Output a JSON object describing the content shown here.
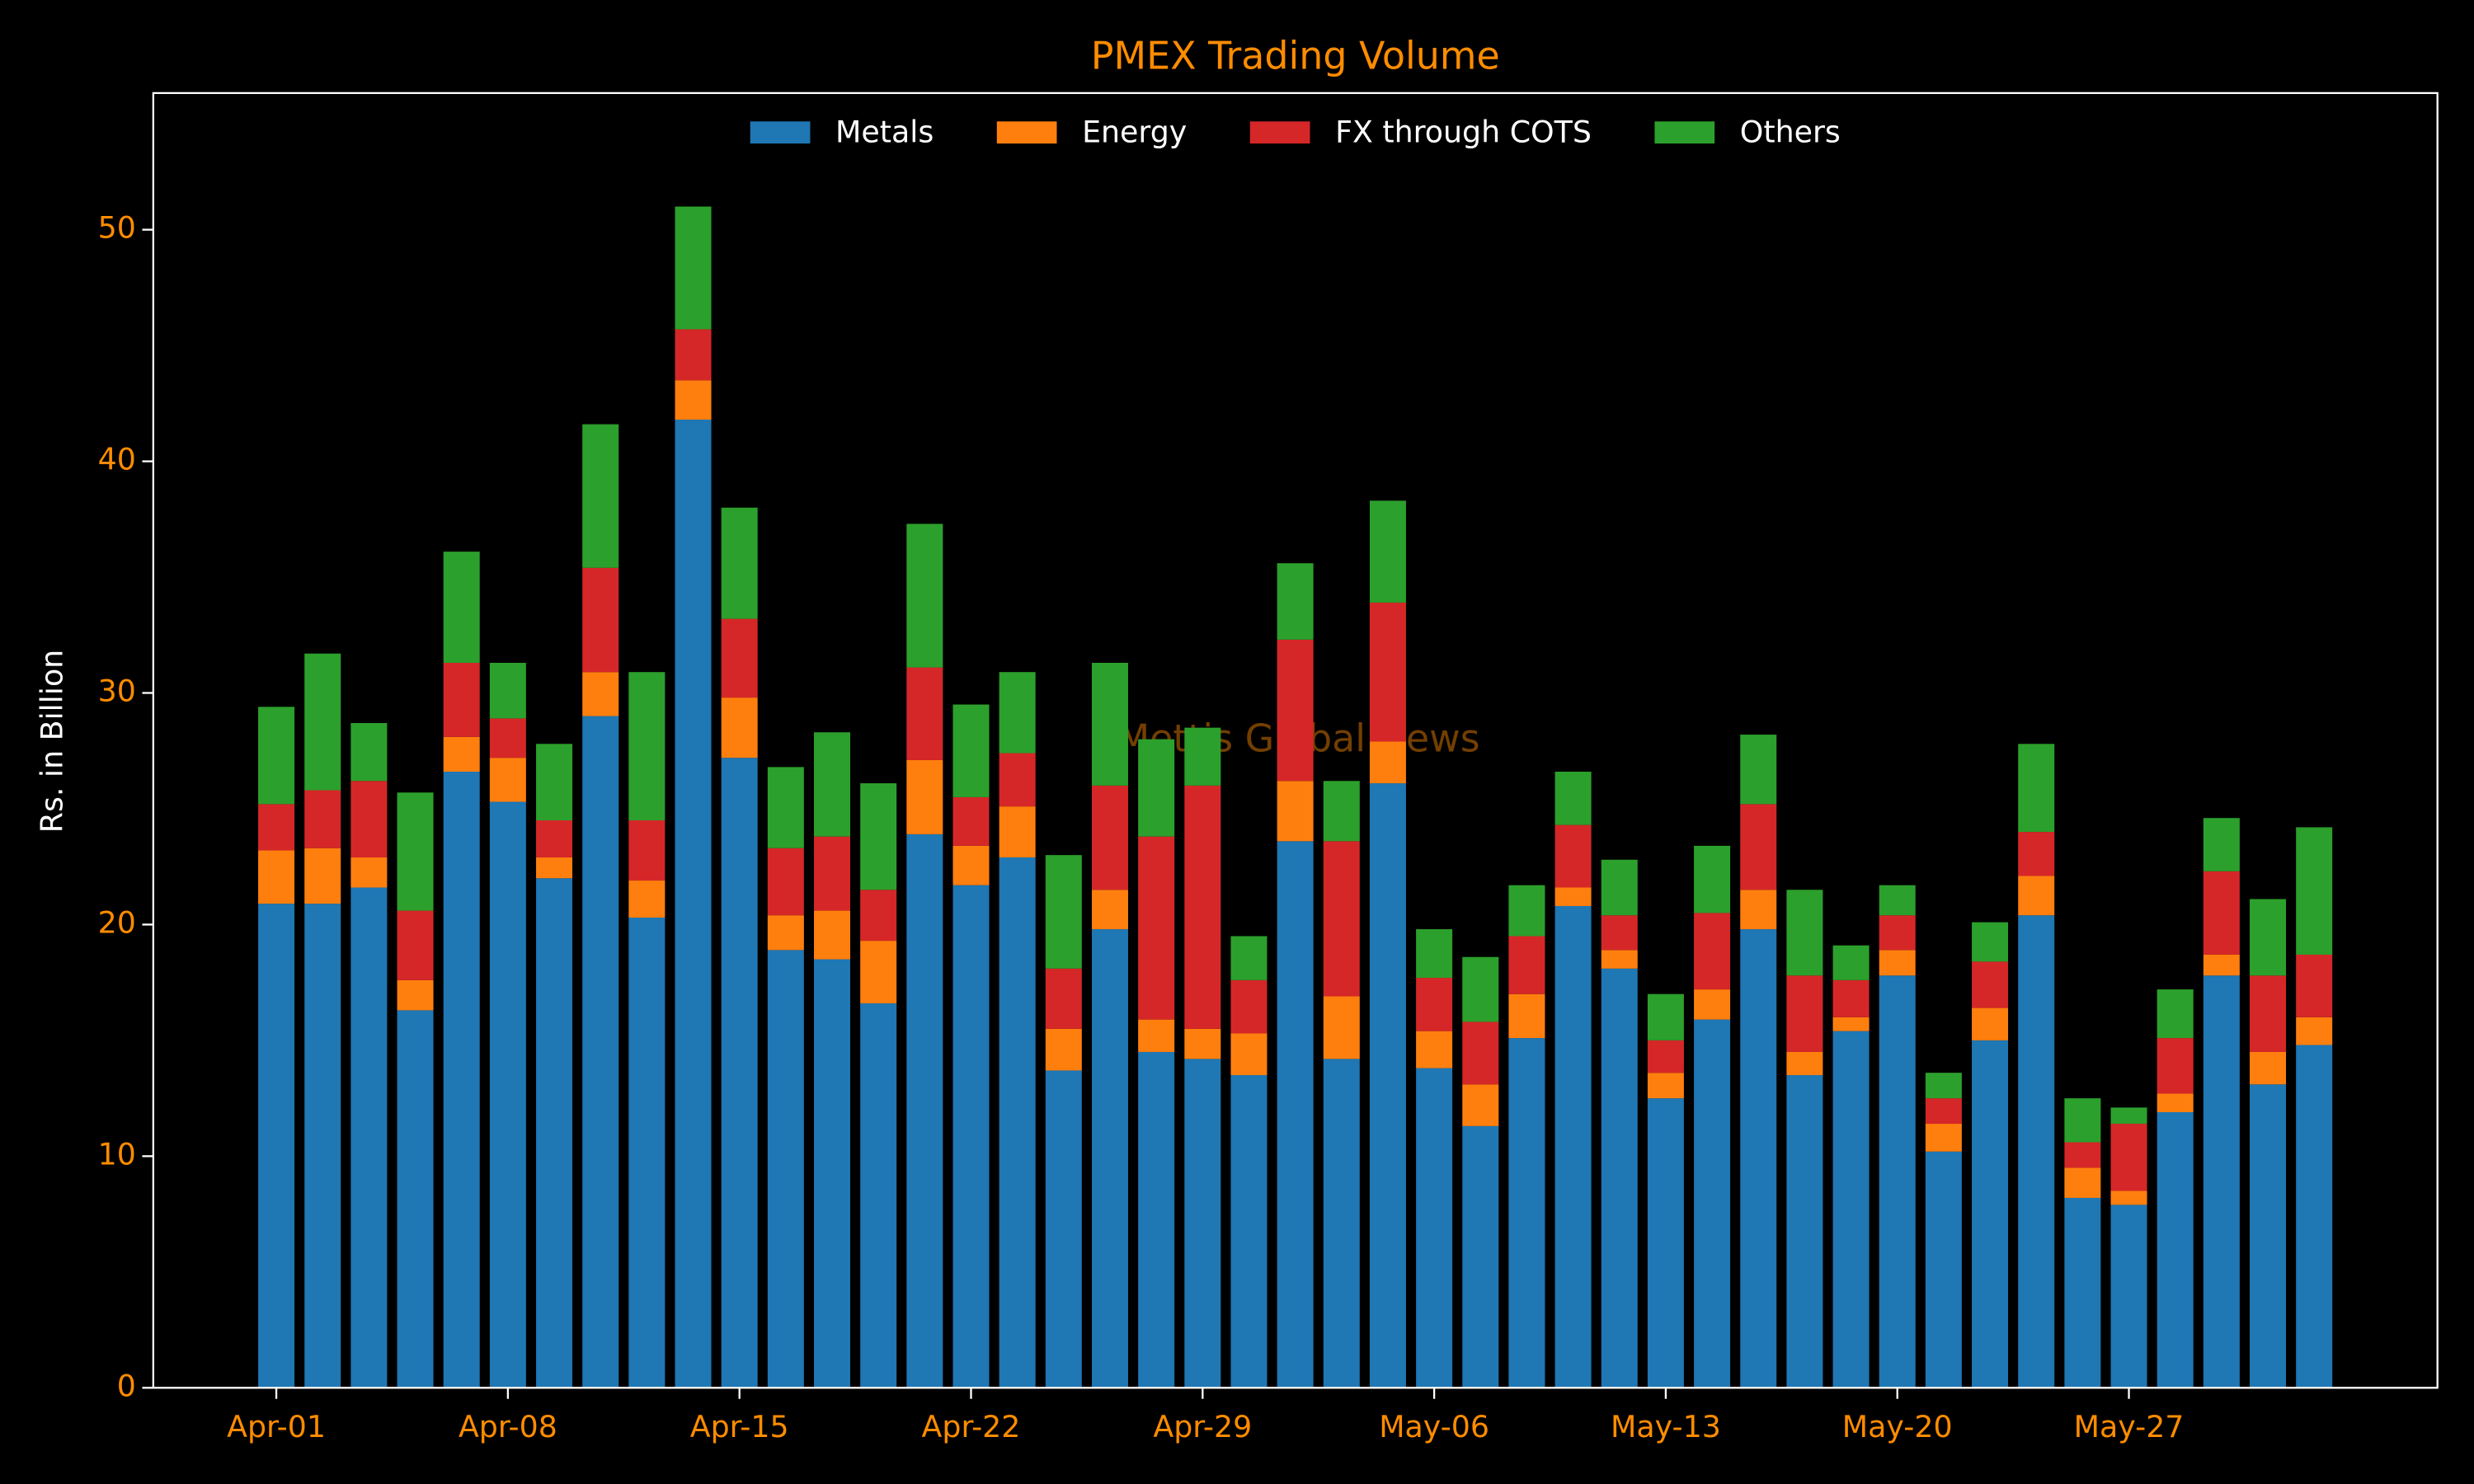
{
  "chart_data": {
    "type": "stacked_bar",
    "title": "PMEX Trading Volume",
    "ylabel": "Rs. in Billion",
    "watermark": "Mettis Global News",
    "legend": "upper center",
    "categories": [
      "Apr-01",
      null,
      null,
      null,
      null,
      "Apr-08",
      null,
      null,
      null,
      null,
      "Apr-15",
      null,
      null,
      null,
      null,
      "Apr-22",
      null,
      null,
      null,
      null,
      "Apr-29",
      null,
      null,
      null,
      null,
      "May-06",
      null,
      null,
      null,
      null,
      "May-13",
      null,
      null,
      null,
      null,
      "May-20",
      null,
      null,
      null,
      null,
      "May-27",
      null,
      null,
      null,
      null
    ],
    "ylim": [
      0,
      55.9
    ],
    "yticks": [
      0,
      10,
      20,
      30,
      40,
      50
    ],
    "series": [
      {
        "name": "Metals",
        "color": "#1f77b4",
        "values": [
          20.9,
          20.9,
          21.6,
          16.3,
          26.6,
          25.3,
          22.0,
          29.0,
          20.3,
          41.8,
          27.2,
          18.9,
          18.5,
          16.6,
          23.9,
          21.7,
          22.9,
          13.7,
          19.8,
          14.5,
          14.2,
          13.5,
          23.6,
          14.2,
          26.1,
          13.8,
          11.3,
          15.1,
          20.8,
          18.1,
          12.5,
          15.9,
          19.8,
          13.5,
          15.4,
          17.8,
          10.2,
          15.0,
          20.4,
          8.2,
          7.9,
          11.9,
          17.8,
          13.1,
          14.8
        ]
      },
      {
        "name": "Energy",
        "color": "#ff7f0e",
        "values": [
          2.3,
          2.4,
          1.3,
          1.3,
          1.5,
          1.9,
          0.9,
          1.9,
          1.6,
          1.7,
          2.6,
          1.5,
          2.1,
          2.7,
          3.2,
          1.7,
          2.2,
          1.8,
          1.7,
          1.4,
          1.3,
          1.8,
          2.6,
          2.7,
          1.8,
          1.6,
          1.8,
          1.9,
          0.8,
          0.8,
          1.1,
          1.3,
          1.7,
          1.0,
          0.6,
          1.1,
          1.2,
          1.4,
          1.7,
          1.3,
          0.6,
          0.8,
          0.9,
          1.4,
          1.2
        ]
      },
      {
        "name": "FX through COTS",
        "color": "#d62728",
        "values": [
          2.0,
          2.5,
          3.3,
          3.0,
          3.2,
          1.7,
          1.6,
          4.5,
          2.6,
          2.2,
          3.4,
          2.9,
          3.2,
          2.2,
          4.0,
          2.1,
          2.3,
          2.6,
          4.5,
          7.9,
          10.5,
          2.3,
          6.1,
          6.7,
          6.0,
          2.3,
          2.7,
          2.5,
          2.7,
          1.5,
          1.4,
          3.3,
          3.7,
          3.3,
          1.6,
          1.5,
          1.1,
          2.0,
          1.9,
          1.1,
          2.9,
          2.4,
          3.6,
          3.3,
          2.7
        ]
      },
      {
        "name": "Others",
        "color": "#2ca02c",
        "values": [
          4.2,
          5.9,
          2.5,
          5.1,
          4.8,
          2.4,
          3.3,
          6.2,
          6.4,
          5.3,
          4.8,
          3.5,
          4.5,
          4.6,
          6.2,
          4.0,
          3.5,
          4.9,
          5.3,
          4.2,
          2.5,
          1.9,
          3.3,
          2.6,
          4.4,
          2.1,
          2.8,
          2.2,
          2.3,
          2.4,
          2.0,
          2.9,
          3.0,
          3.7,
          1.5,
          1.3,
          1.1,
          1.7,
          3.8,
          1.9,
          0.7,
          2.1,
          2.3,
          3.3,
          5.5
        ]
      }
    ]
  }
}
